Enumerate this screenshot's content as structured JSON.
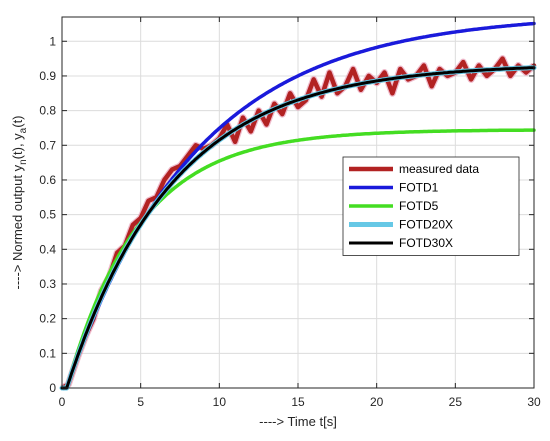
{
  "chart_data": {
    "type": "line",
    "xlabel": "----> Time t[s]",
    "ylabel_main": "----> Normed output y",
    "ylabel_sub1": "n",
    "ylabel_mid": "(t), y",
    "ylabel_sub2": "a",
    "ylabel_end": "(t)",
    "xlim": [
      0,
      30
    ],
    "ylim": [
      0,
      1.07
    ],
    "xticks": [
      0,
      5,
      10,
      15,
      20,
      25,
      30
    ],
    "yticks": [
      0,
      0.1,
      0.2,
      0.3,
      0.4,
      0.5,
      0.6,
      0.7,
      0.8,
      0.9,
      1
    ],
    "grid": true,
    "legend_position": "right",
    "series": [
      {
        "name": "measured data",
        "color": "#b22222",
        "noisy": true,
        "x": [
          0,
          0.4,
          1,
          1.5,
          2,
          2.5,
          3,
          3.5,
          4,
          4.5,
          5,
          5.5,
          6,
          6.5,
          7,
          7.5,
          8,
          8.5,
          9,
          9.5,
          10,
          10.5,
          11,
          11.5,
          12,
          12.5,
          13,
          13.5,
          14,
          14.5,
          15,
          15.5,
          16,
          16.5,
          17,
          17.5,
          18,
          18.5,
          19,
          19.5,
          20,
          20.5,
          21,
          21.5,
          22,
          22.5,
          23,
          23.5,
          24,
          24.5,
          25,
          25.5,
          26,
          26.5,
          27,
          27.5,
          28,
          28.5,
          29,
          29.5,
          30
        ],
        "y": [
          0,
          0.01,
          0.09,
          0.15,
          0.2,
          0.28,
          0.32,
          0.39,
          0.41,
          0.47,
          0.49,
          0.54,
          0.55,
          0.6,
          0.63,
          0.64,
          0.67,
          0.7,
          0.69,
          0.7,
          0.72,
          0.76,
          0.71,
          0.78,
          0.74,
          0.8,
          0.76,
          0.82,
          0.79,
          0.85,
          0.81,
          0.83,
          0.89,
          0.84,
          0.91,
          0.85,
          0.87,
          0.92,
          0.86,
          0.9,
          0.88,
          0.91,
          0.85,
          0.92,
          0.89,
          0.9,
          0.93,
          0.87,
          0.92,
          0.9,
          0.91,
          0.94,
          0.89,
          0.93,
          0.9,
          0.92,
          0.95,
          0.9,
          0.93,
          0.91,
          0.93
        ]
      },
      {
        "name": "FOTD1",
        "color": "#1a1adb",
        "K": 1.08,
        "T": 8.2,
        "L": 0.3
      },
      {
        "name": "FOTD5",
        "color": "#44dd22",
        "K": 0.745,
        "T": 4.6,
        "L": 0.3
      },
      {
        "name": "FOTD20X",
        "color": "#66c8e6",
        "K": 0.935,
        "T": 6.7,
        "L": 0.3
      },
      {
        "name": "FOTD30X",
        "color": "#000000",
        "K": 0.935,
        "T": 6.7,
        "L": 0.3
      }
    ]
  }
}
